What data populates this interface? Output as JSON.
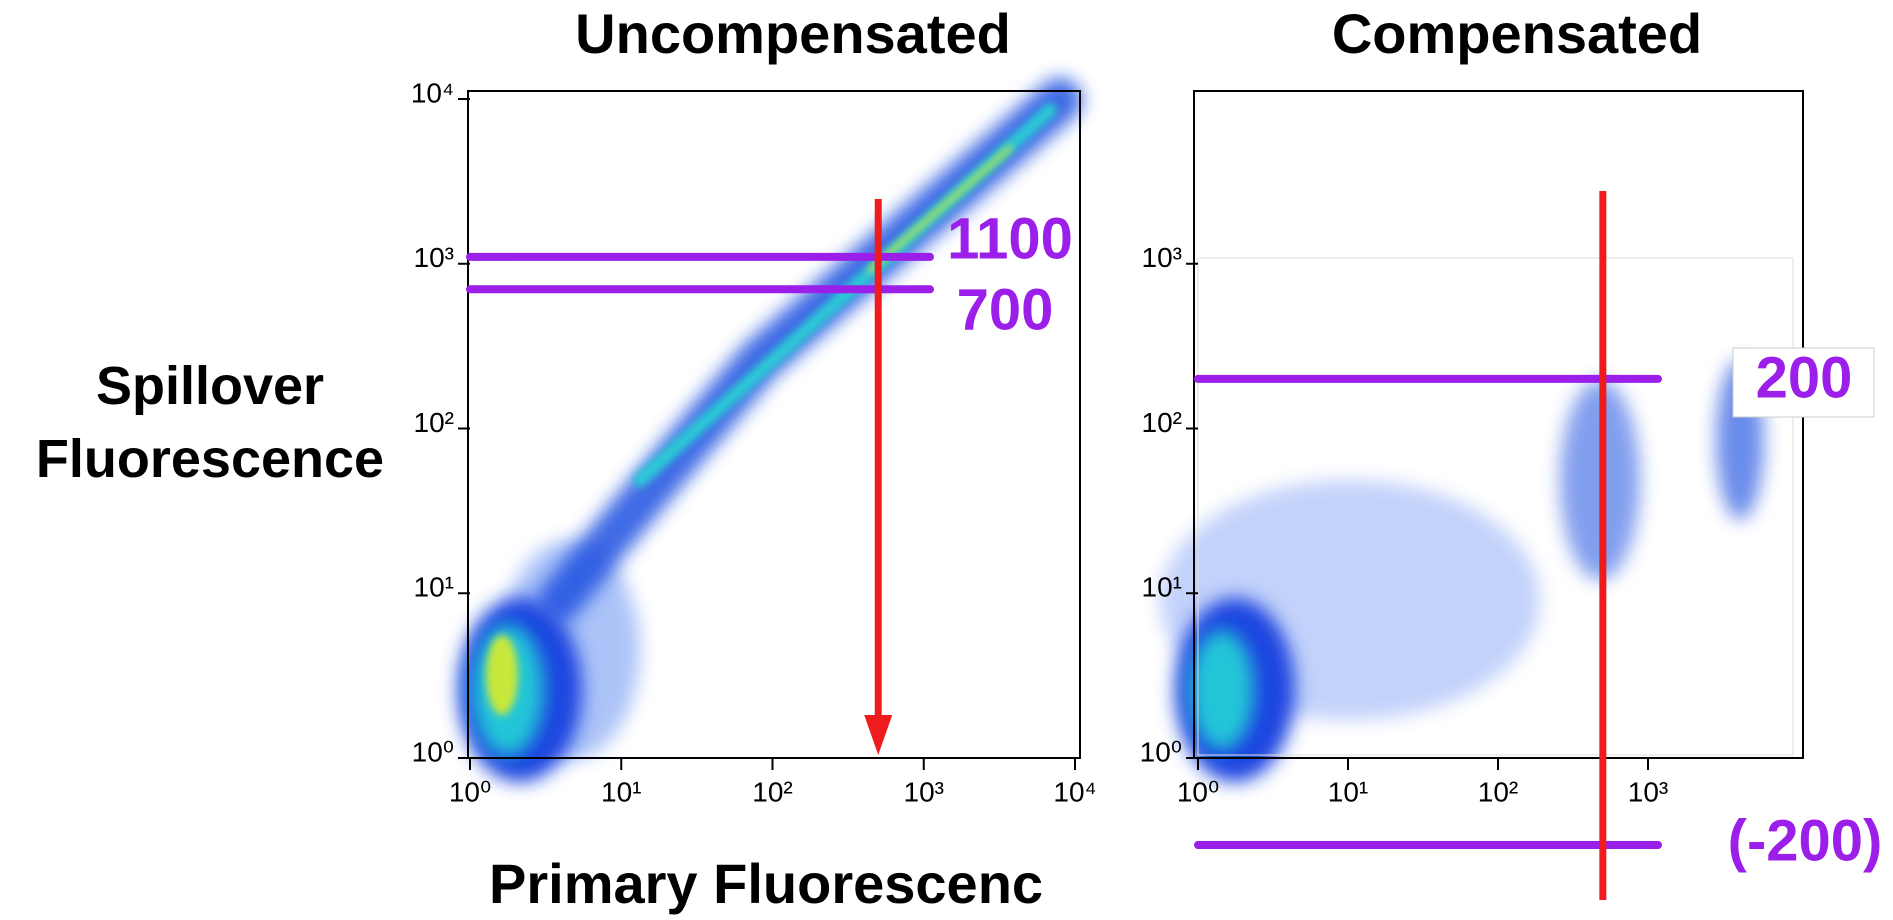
{
  "chart_data": [
    {
      "type": "scatter",
      "title": "Uncompensated",
      "xlabel": "Primary Fluorescenc",
      "ylabel": "Spillover Fluorescence",
      "log_scale": true,
      "xlim": [
        1,
        10000
      ],
      "ylim": [
        1,
        10000
      ],
      "xticks": [
        {
          "value": 1,
          "label": "10⁰"
        },
        {
          "value": 10,
          "label": "10¹"
        },
        {
          "value": 100,
          "label": "10²"
        },
        {
          "value": 1000,
          "label": "10³"
        },
        {
          "value": 10000,
          "label": "10⁴"
        }
      ],
      "yticks": [
        {
          "value": 1,
          "label": "10⁰"
        },
        {
          "value": 10,
          "label": "10¹"
        },
        {
          "value": 100,
          "label": "10²"
        },
        {
          "value": 1000,
          "label": "10³"
        },
        {
          "value": 10000,
          "label": "10⁴"
        }
      ],
      "hlines": [
        {
          "value": 1100,
          "label": "1100",
          "color": "#9b1fe8"
        },
        {
          "value": 700,
          "label": "700",
          "color": "#9b1fe8"
        }
      ],
      "vline": {
        "value": 500,
        "color": "#ee1c1c",
        "arrow": true
      }
    },
    {
      "type": "scatter",
      "title": "Compensated",
      "log_scale": true,
      "xlim": [
        1,
        10000
      ],
      "ylim": [
        1,
        10000
      ],
      "xticks": [
        {
          "value": 1,
          "label": "10⁰"
        },
        {
          "value": 10,
          "label": "10¹"
        },
        {
          "value": 100,
          "label": "10²"
        },
        {
          "value": 1000,
          "label": "10³"
        }
      ],
      "yticks": [
        {
          "value": 1,
          "label": "10⁰"
        },
        {
          "value": 10,
          "label": "10¹"
        },
        {
          "value": 100,
          "label": "10²"
        },
        {
          "value": 1000,
          "label": "10³"
        }
      ],
      "hlines": [
        {
          "value": 200,
          "label": "200",
          "color": "#9b1fe8"
        },
        {
          "value": -200,
          "label": "(-200)",
          "color": "#9b1fe8"
        }
      ],
      "vline": {
        "value": 500,
        "color": "#ee1c1c",
        "arrow": false
      }
    }
  ]
}
